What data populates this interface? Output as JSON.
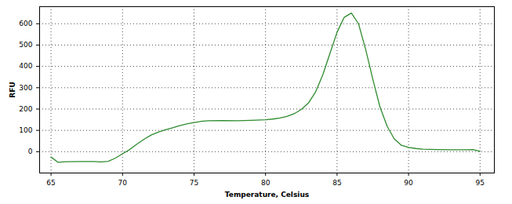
{
  "chart_data": {
    "type": "line",
    "x_label": "Temperature, Celsius",
    "y_label": "RFU",
    "color": "#2e8b2e",
    "grid": true,
    "xlim": [
      64.2,
      96
    ],
    "xticks": [
      65,
      70,
      75,
      80,
      85,
      90,
      95
    ],
    "ylim": [
      -100,
      680
    ],
    "yticks": [
      0,
      100,
      200,
      300,
      400,
      500,
      600
    ],
    "x": [
      65,
      65.5,
      66,
      67,
      68,
      68.5,
      69,
      69.5,
      70,
      70.5,
      71,
      71.5,
      72,
      72.5,
      73,
      73.5,
      74,
      74.5,
      75,
      75.5,
      76,
      77,
      78,
      79,
      80,
      80.5,
      81,
      81.5,
      82,
      82.5,
      83,
      83.5,
      84,
      84.5,
      85,
      85.5,
      86,
      86.5,
      87,
      87.5,
      88,
      88.5,
      89,
      89.5,
      90,
      90.5,
      91,
      92,
      93,
      94,
      94.5,
      95
    ],
    "values": [
      -25,
      -50,
      -47,
      -46,
      -46,
      -48,
      -45,
      -30,
      -10,
      10,
      35,
      58,
      78,
      92,
      103,
      112,
      122,
      130,
      137,
      142,
      145,
      146,
      145,
      147,
      150,
      153,
      158,
      165,
      178,
      198,
      228,
      280,
      360,
      460,
      560,
      630,
      650,
      600,
      480,
      340,
      210,
      120,
      60,
      30,
      20,
      15,
      12,
      10,
      9,
      9,
      10,
      2
    ]
  }
}
